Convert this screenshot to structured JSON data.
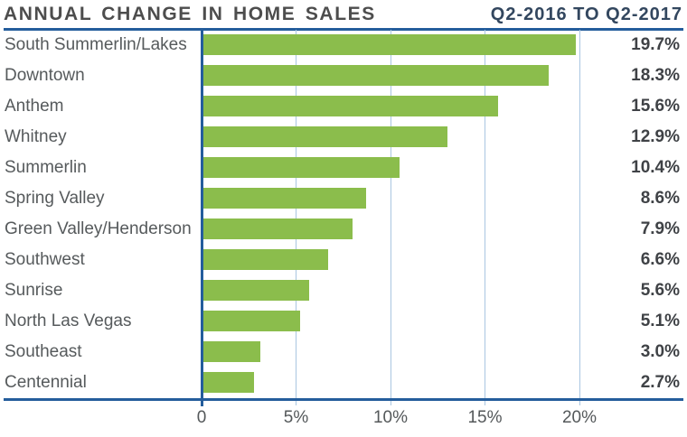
{
  "header": {
    "title": "ANNUAL CHANGE IN HOME SALES",
    "period": "Q2-2016 TO Q2-2017"
  },
  "chart_data": {
    "type": "bar",
    "orientation": "horizontal",
    "title": "ANNUAL CHANGE IN HOME SALES",
    "subtitle": "Q2-2016 TO Q2-2017",
    "categories": [
      "South Summerlin/Lakes",
      "Downtown",
      "Anthem",
      "Whitney",
      "Summerlin",
      "Spring Valley",
      "Green Valley/Henderson",
      "Southwest",
      "Sunrise",
      "North Las Vegas",
      "Southeast",
      "Centennial"
    ],
    "values": [
      19.7,
      18.3,
      15.6,
      12.9,
      10.4,
      8.6,
      7.9,
      6.6,
      5.6,
      5.1,
      3.0,
      2.7
    ],
    "value_labels": [
      "19.7%",
      "18.3%",
      "15.6%",
      "12.9%",
      "10.4%",
      "8.6%",
      "7.9%",
      "6.6%",
      "5.6%",
      "5.1%",
      "3.0%",
      "2.7%"
    ],
    "x_ticks": [
      {
        "value": 0,
        "label": "0"
      },
      {
        "value": 5,
        "label": "5%"
      },
      {
        "value": 10,
        "label": "10%"
      },
      {
        "value": 15,
        "label": "15%"
      },
      {
        "value": 20,
        "label": "20%"
      }
    ],
    "xlim": [
      0,
      25.4
    ],
    "grid": true,
    "legend": "none",
    "colors": {
      "bar": "#8bbd4c",
      "axis": "#245d9c",
      "gridline": "#a9c6e1",
      "title_text": "#4d4d4d",
      "period_text": "#33475f",
      "category_text": "#565a5c",
      "value_text": "#3f4246",
      "tick_text": "#54585a"
    }
  }
}
